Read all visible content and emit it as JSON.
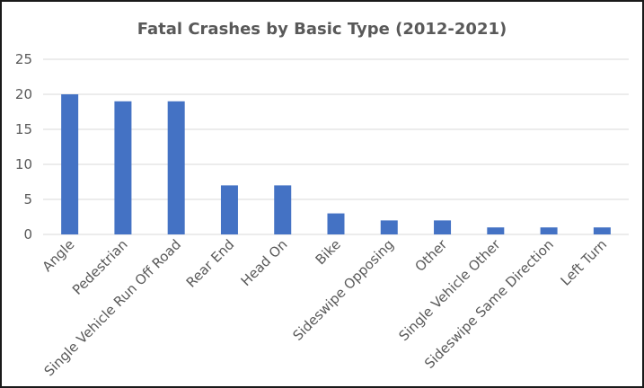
{
  "chart_data": {
    "type": "bar",
    "title": "Fatal Crashes by Basic Type (2012-2021)",
    "categories": [
      "Angle",
      "Pedestrian",
      "Single Vehicle Run Off Road",
      "Rear End",
      "Head On",
      "Bike",
      "Sideswipe Opposing",
      "Other",
      "Single Vehicle Other",
      "Sideswipe Same Direction",
      "Left Turn"
    ],
    "values": [
      20,
      19,
      19,
      7,
      7,
      3,
      2,
      2,
      1,
      1,
      1
    ],
    "ylim": [
      0,
      25
    ],
    "yticks": [
      "0",
      "5",
      "10",
      "15",
      "20",
      "25"
    ],
    "grid": true,
    "bar_color": "#4472C4",
    "grid_color": "#d9d9d9"
  }
}
